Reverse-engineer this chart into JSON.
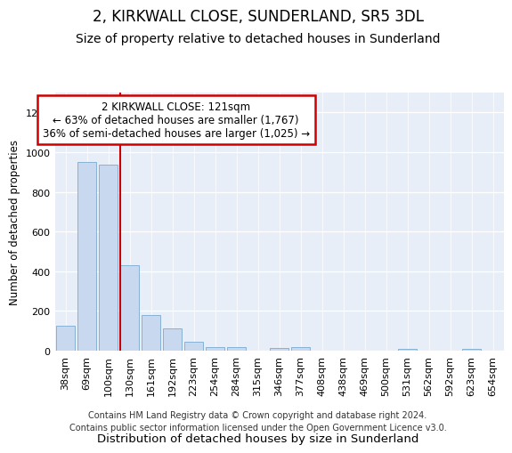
{
  "title": "2, KIRKWALL CLOSE, SUNDERLAND, SR5 3DL",
  "subtitle": "Size of property relative to detached houses in Sunderland",
  "xlabel": "Distribution of detached houses by size in Sunderland",
  "ylabel": "Number of detached properties",
  "categories": [
    "38sqm",
    "69sqm",
    "100sqm",
    "130sqm",
    "161sqm",
    "192sqm",
    "223sqm",
    "254sqm",
    "284sqm",
    "315sqm",
    "346sqm",
    "377sqm",
    "408sqm",
    "438sqm",
    "469sqm",
    "500sqm",
    "531sqm",
    "562sqm",
    "592sqm",
    "623sqm",
    "654sqm"
  ],
  "values": [
    125,
    950,
    935,
    430,
    180,
    112,
    44,
    20,
    18,
    0,
    15,
    18,
    0,
    0,
    0,
    0,
    8,
    0,
    0,
    8,
    0
  ],
  "bar_color": "#c8d8ee",
  "bar_edge_color": "#7aaad0",
  "redline_index": 3,
  "annotation_line1": "2 KIRKWALL CLOSE: 121sqm",
  "annotation_line2": "← 63% of detached houses are smaller (1,767)",
  "annotation_line3": "36% of semi-detached houses are larger (1,025) →",
  "annotation_box_color": "#ffffff",
  "annotation_box_edge": "#cc0000",
  "redline_color": "#cc0000",
  "ylim": [
    0,
    1300
  ],
  "yticks": [
    0,
    200,
    400,
    600,
    800,
    1000,
    1200
  ],
  "footnote": "Contains HM Land Registry data © Crown copyright and database right 2024.\nContains public sector information licensed under the Open Government Licence v3.0.",
  "title_fontsize": 12,
  "subtitle_fontsize": 10,
  "xlabel_fontsize": 9.5,
  "ylabel_fontsize": 8.5,
  "tick_fontsize": 8,
  "annotation_fontsize": 8.5,
  "footnote_fontsize": 7,
  "plot_bg_color": "#e8eef8"
}
